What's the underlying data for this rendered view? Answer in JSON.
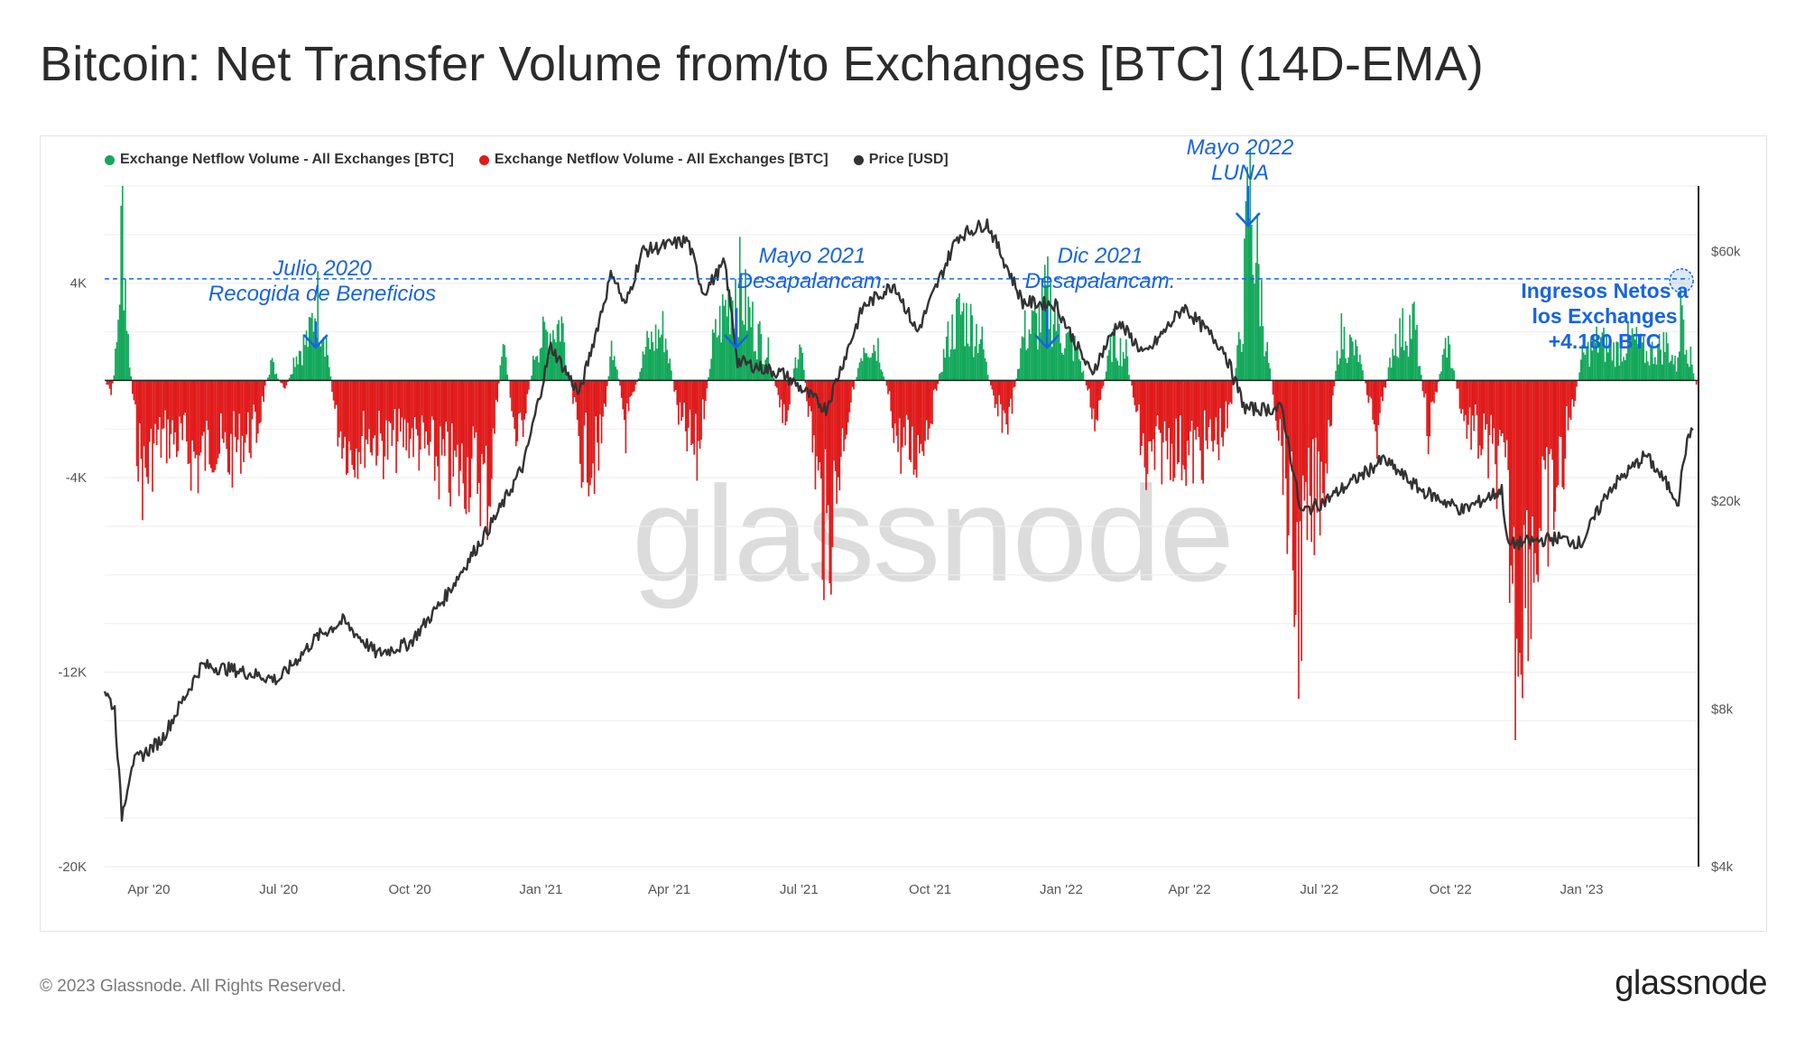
{
  "title": "Bitcoin: Net Transfer Volume from/to Exchanges [BTC] (14D-EMA)",
  "legend": [
    {
      "label": "Exchange Netflow Volume - All Exchanges [BTC]",
      "color": "#13a85a"
    },
    {
      "label": "Exchange Netflow Volume - All Exchanges [BTC]",
      "color": "#e01a1a"
    },
    {
      "label": "Price [USD]",
      "color": "#333333"
    }
  ],
  "watermark": "glassnode",
  "annotations": [
    {
      "line1": "Julio 2020",
      "line2": "Recogida de Beneficios"
    },
    {
      "line1": "Mayo 2021",
      "line2": "Desapalancam."
    },
    {
      "line1": "Dic 2021",
      "line2": "Desapalancam."
    },
    {
      "line1": "Mayo 2022",
      "line2": "LUNA"
    }
  ],
  "callout": {
    "line1": "Ingresos Netos a",
    "line2": "los Exchanges",
    "line3": "+4.180 BTC"
  },
  "footer": {
    "copyright": "© 2023 Glassnode. All Rights Reserved.",
    "logo": "glassnode"
  },
  "colors": {
    "inflow": "#13a85a",
    "outflow": "#e01a1a",
    "price": "#333333",
    "annotation": "#1763e6"
  },
  "chart_data": {
    "type": "bar",
    "x_tick_labels": [
      "Apr '20",
      "Jul '20",
      "Oct '20",
      "Jan '21",
      "Apr '21",
      "Jul '21",
      "Oct '21",
      "Jan '22",
      "Apr '22",
      "Jul '22",
      "Oct '22",
      "Jan '23"
    ],
    "y_left_tick_labels": [
      "4K",
      "-4K",
      "-12K",
      "-20K"
    ],
    "y_left_ticks": [
      4000,
      -4000,
      -12000,
      -20000
    ],
    "ylim_left": [
      -20000,
      8000
    ],
    "y_right_tick_labels": [
      "$60k",
      "$20k",
      "$8k",
      "$4k"
    ],
    "y_right_ticks": [
      60000,
      20000,
      8000,
      4000
    ],
    "ylim_right": [
      4000,
      80000
    ],
    "y_right_scale": "log",
    "reference_line": 4180,
    "netflow_series": [
      {
        "date": "2020-03-01",
        "value": 0
      },
      {
        "date": "2020-03-05",
        "value": -800
      },
      {
        "date": "2020-03-09",
        "value": 1800
      },
      {
        "date": "2020-03-13",
        "value": 8500
      },
      {
        "date": "2020-03-17",
        "value": 2000
      },
      {
        "date": "2020-03-22",
        "value": -2500
      },
      {
        "date": "2020-03-28",
        "value": -5200
      },
      {
        "date": "2020-04-05",
        "value": -3200
      },
      {
        "date": "2020-04-15",
        "value": -2800
      },
      {
        "date": "2020-04-25",
        "value": -3300
      },
      {
        "date": "2020-05-05",
        "value": -4200
      },
      {
        "date": "2020-05-15",
        "value": -3100
      },
      {
        "date": "2020-05-25",
        "value": -4000
      },
      {
        "date": "2020-06-05",
        "value": -3000
      },
      {
        "date": "2020-06-15",
        "value": -2600
      },
      {
        "date": "2020-06-25",
        "value": 1000
      },
      {
        "date": "2020-07-05",
        "value": -600
      },
      {
        "date": "2020-07-12",
        "value": 1300
      },
      {
        "date": "2020-07-22",
        "value": 2200
      },
      {
        "date": "2020-07-27",
        "value": 4200
      },
      {
        "date": "2020-08-02",
        "value": 2600
      },
      {
        "date": "2020-08-10",
        "value": -2200
      },
      {
        "date": "2020-08-20",
        "value": -3600
      },
      {
        "date": "2020-09-01",
        "value": -2800
      },
      {
        "date": "2020-09-15",
        "value": -3400
      },
      {
        "date": "2020-10-01",
        "value": -2700
      },
      {
        "date": "2020-10-15",
        "value": -3900
      },
      {
        "date": "2020-11-01",
        "value": -4800
      },
      {
        "date": "2020-11-15",
        "value": -4400
      },
      {
        "date": "2020-11-25",
        "value": -5700
      },
      {
        "date": "2020-12-05",
        "value": 2300
      },
      {
        "date": "2020-12-15",
        "value": -3600
      },
      {
        "date": "2020-12-28",
        "value": 1700
      },
      {
        "date": "2021-01-05",
        "value": 2400
      },
      {
        "date": "2021-01-15",
        "value": 3000
      },
      {
        "date": "2021-01-28",
        "value": -3600
      },
      {
        "date": "2021-02-10",
        "value": -4100
      },
      {
        "date": "2021-02-20",
        "value": 2300
      },
      {
        "date": "2021-03-01",
        "value": -2500
      },
      {
        "date": "2021-03-15",
        "value": 1700
      },
      {
        "date": "2021-03-28",
        "value": 2600
      },
      {
        "date": "2021-04-08",
        "value": -2200
      },
      {
        "date": "2021-04-20",
        "value": -3900
      },
      {
        "date": "2021-05-01",
        "value": 1800
      },
      {
        "date": "2021-05-12",
        "value": 4200
      },
      {
        "date": "2021-05-18",
        "value": 5300
      },
      {
        "date": "2021-05-24",
        "value": 3800
      },
      {
        "date": "2021-06-01",
        "value": 2400
      },
      {
        "date": "2021-06-10",
        "value": 1300
      },
      {
        "date": "2021-06-20",
        "value": -2600
      },
      {
        "date": "2021-07-01",
        "value": 2300
      },
      {
        "date": "2021-07-10",
        "value": -3100
      },
      {
        "date": "2021-07-20",
        "value": -8600
      },
      {
        "date": "2021-08-01",
        "value": -2700
      },
      {
        "date": "2021-08-15",
        "value": 2000
      },
      {
        "date": "2021-08-25",
        "value": 1800
      },
      {
        "date": "2021-09-08",
        "value": -3200
      },
      {
        "date": "2021-09-20",
        "value": -3700
      },
      {
        "date": "2021-10-01",
        "value": -1800
      },
      {
        "date": "2021-10-12",
        "value": 1900
      },
      {
        "date": "2021-10-22",
        "value": 3500
      },
      {
        "date": "2021-11-05",
        "value": 2300
      },
      {
        "date": "2021-11-15",
        "value": -1600
      },
      {
        "date": "2021-11-25",
        "value": -2000
      },
      {
        "date": "2021-12-05",
        "value": 2400
      },
      {
        "date": "2021-12-15",
        "value": 2900
      },
      {
        "date": "2021-12-22",
        "value": 4300
      },
      {
        "date": "2022-01-01",
        "value": 2300
      },
      {
        "date": "2022-01-12",
        "value": 1500
      },
      {
        "date": "2022-01-25",
        "value": -2200
      },
      {
        "date": "2022-02-05",
        "value": 2000
      },
      {
        "date": "2022-02-15",
        "value": 1400
      },
      {
        "date": "2022-03-01",
        "value": -4700
      },
      {
        "date": "2022-03-15",
        "value": -3200
      },
      {
        "date": "2022-04-01",
        "value": -3800
      },
      {
        "date": "2022-04-15",
        "value": -3300
      },
      {
        "date": "2022-04-28",
        "value": -2100
      },
      {
        "date": "2022-05-08",
        "value": 3400
      },
      {
        "date": "2022-05-12",
        "value": 9600
      },
      {
        "date": "2022-05-18",
        "value": 6000
      },
      {
        "date": "2022-05-25",
        "value": 1400
      },
      {
        "date": "2022-06-05",
        "value": -3800
      },
      {
        "date": "2022-06-15",
        "value": -11200
      },
      {
        "date": "2022-06-25",
        "value": -6800
      },
      {
        "date": "2022-07-05",
        "value": -4100
      },
      {
        "date": "2022-07-15",
        "value": 2400
      },
      {
        "date": "2022-07-28",
        "value": 1300
      },
      {
        "date": "2022-08-10",
        "value": -2800
      },
      {
        "date": "2022-08-22",
        "value": 2100
      },
      {
        "date": "2022-09-05",
        "value": 3000
      },
      {
        "date": "2022-09-15",
        "value": -2600
      },
      {
        "date": "2022-09-28",
        "value": 2100
      },
      {
        "date": "2022-10-10",
        "value": -2000
      },
      {
        "date": "2022-10-25",
        "value": -3400
      },
      {
        "date": "2022-11-08",
        "value": -5000
      },
      {
        "date": "2022-11-15",
        "value": -12400
      },
      {
        "date": "2022-11-25",
        "value": -9000
      },
      {
        "date": "2022-12-05",
        "value": -7300
      },
      {
        "date": "2022-12-15",
        "value": -5300
      },
      {
        "date": "2023-01-01",
        "value": 1200
      },
      {
        "date": "2023-01-12",
        "value": 2000
      },
      {
        "date": "2023-01-25",
        "value": 1500
      },
      {
        "date": "2023-02-05",
        "value": 2100
      },
      {
        "date": "2023-02-15",
        "value": 1300
      },
      {
        "date": "2023-03-01",
        "value": 1900
      },
      {
        "date": "2023-03-08",
        "value": 700
      },
      {
        "date": "2023-03-12",
        "value": 4180
      },
      {
        "date": "2023-03-16",
        "value": 1800
      },
      {
        "date": "2023-03-19",
        "value": 800
      },
      {
        "date": "2023-03-22",
        "value": -300
      }
    ],
    "price_series": [
      {
        "date": "2020-03-01",
        "value": 8700
      },
      {
        "date": "2020-03-08",
        "value": 8000
      },
      {
        "date": "2020-03-13",
        "value": 5000
      },
      {
        "date": "2020-03-20",
        "value": 6300
      },
      {
        "date": "2020-04-10",
        "value": 7000
      },
      {
        "date": "2020-05-08",
        "value": 9700
      },
      {
        "date": "2020-06-01",
        "value": 9500
      },
      {
        "date": "2020-07-01",
        "value": 9100
      },
      {
        "date": "2020-07-28",
        "value": 11000
      },
      {
        "date": "2020-08-15",
        "value": 11800
      },
      {
        "date": "2020-09-08",
        "value": 10200
      },
      {
        "date": "2020-10-01",
        "value": 10700
      },
      {
        "date": "2020-10-25",
        "value": 13000
      },
      {
        "date": "2020-11-15",
        "value": 16000
      },
      {
        "date": "2020-12-01",
        "value": 18800
      },
      {
        "date": "2020-12-20",
        "value": 23500
      },
      {
        "date": "2021-01-08",
        "value": 39500
      },
      {
        "date": "2021-01-28",
        "value": 32000
      },
      {
        "date": "2021-02-20",
        "value": 55000
      },
      {
        "date": "2021-03-01",
        "value": 47000
      },
      {
        "date": "2021-03-13",
        "value": 60000
      },
      {
        "date": "2021-04-14",
        "value": 63000
      },
      {
        "date": "2021-04-25",
        "value": 50000
      },
      {
        "date": "2021-05-10",
        "value": 57000
      },
      {
        "date": "2021-05-19",
        "value": 37000
      },
      {
        "date": "2021-06-20",
        "value": 35000
      },
      {
        "date": "2021-07-20",
        "value": 30000
      },
      {
        "date": "2021-08-15",
        "value": 47000
      },
      {
        "date": "2021-09-06",
        "value": 52000
      },
      {
        "date": "2021-09-22",
        "value": 42000
      },
      {
        "date": "2021-10-20",
        "value": 64000
      },
      {
        "date": "2021-11-10",
        "value": 68000
      },
      {
        "date": "2021-12-05",
        "value": 48000
      },
      {
        "date": "2021-12-28",
        "value": 47500
      },
      {
        "date": "2022-01-22",
        "value": 35000
      },
      {
        "date": "2022-02-10",
        "value": 44000
      },
      {
        "date": "2022-03-01",
        "value": 38000
      },
      {
        "date": "2022-03-28",
        "value": 47000
      },
      {
        "date": "2022-04-25",
        "value": 39000
      },
      {
        "date": "2022-05-10",
        "value": 30000
      },
      {
        "date": "2022-06-05",
        "value": 30000
      },
      {
        "date": "2022-06-18",
        "value": 19000
      },
      {
        "date": "2022-07-05",
        "value": 20000
      },
      {
        "date": "2022-08-15",
        "value": 24000
      },
      {
        "date": "2022-09-10",
        "value": 21000
      },
      {
        "date": "2022-10-10",
        "value": 19200
      },
      {
        "date": "2022-11-06",
        "value": 21000
      },
      {
        "date": "2022-11-10",
        "value": 16500
      },
      {
        "date": "2022-12-15",
        "value": 17000
      },
      {
        "date": "2023-01-01",
        "value": 16600
      },
      {
        "date": "2023-01-20",
        "value": 21000
      },
      {
        "date": "2023-02-15",
        "value": 24500
      },
      {
        "date": "2023-03-10",
        "value": 20000
      },
      {
        "date": "2023-03-14",
        "value": 24500
      },
      {
        "date": "2023-03-20",
        "value": 28000
      }
    ]
  }
}
